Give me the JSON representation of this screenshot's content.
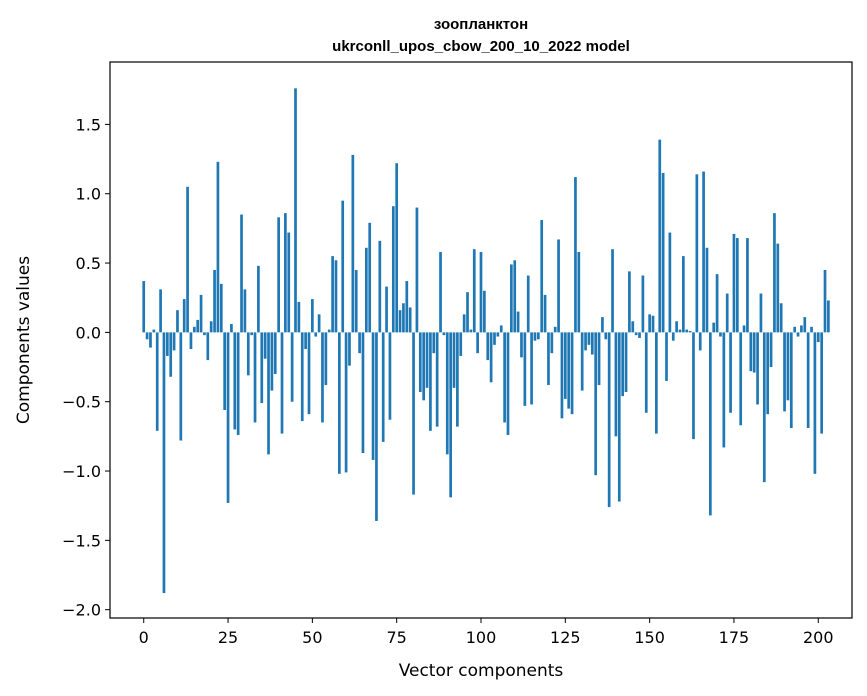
{
  "chart_data": {
    "type": "bar",
    "title_line1": "зоопланктон",
    "title_line2": "ukrconll_upos_cbow_200_10_2022 model",
    "xlabel": "Vector components",
    "ylabel": "Components values",
    "xlim": [
      -10,
      210
    ],
    "ylim": [
      -2.06,
      1.95
    ],
    "xticks": [
      0,
      25,
      50,
      75,
      100,
      125,
      150,
      175,
      200
    ],
    "yticks": [
      -2.0,
      -1.5,
      -1.0,
      -0.5,
      0.0,
      0.5,
      1.0,
      1.5
    ],
    "ytick_labels": [
      "−2.0",
      "−1.5",
      "−1.0",
      "−0.5",
      "0.0",
      "0.5",
      "1.0",
      "1.5"
    ],
    "bar_color": "#1f77b4",
    "grid": false,
    "values": [
      0.37,
      -0.05,
      -0.11,
      0.02,
      -0.71,
      0.31,
      -1.88,
      -0.17,
      -0.32,
      -0.13,
      0.16,
      -0.78,
      0.24,
      1.05,
      -0.12,
      0.04,
      0.09,
      0.27,
      -0.02,
      -0.2,
      0.08,
      0.45,
      1.23,
      0.35,
      -0.56,
      -1.23,
      0.06,
      -0.7,
      -0.74,
      0.85,
      0.31,
      -0.31,
      -0.02,
      -0.65,
      0.48,
      -0.51,
      -0.19,
      -0.88,
      -0.42,
      -0.3,
      0.83,
      -0.73,
      0.86,
      0.72,
      -0.5,
      1.76,
      0.22,
      -0.64,
      -0.12,
      -0.59,
      0.24,
      -0.03,
      0.13,
      -0.65,
      -0.38,
      0.02,
      0.55,
      0.52,
      -1.02,
      0.95,
      -1.01,
      -0.24,
      1.28,
      0.45,
      -0.15,
      -0.87,
      0.61,
      0.79,
      -0.92,
      -1.36,
      0.66,
      -0.79,
      0.33,
      -0.63,
      0.91,
      1.22,
      0.16,
      0.21,
      0.37,
      0.18,
      -1.17,
      0.9,
      -0.43,
      -0.49,
      -0.4,
      -0.71,
      -0.15,
      -0.68,
      0.58,
      -0.02,
      -0.88,
      -1.19,
      -0.4,
      -0.68,
      -0.17,
      0.13,
      0.29,
      0.02,
      0.6,
      -0.15,
      0.58,
      0.3,
      -0.2,
      -0.36,
      -0.09,
      -0.03,
      0.05,
      -0.65,
      -0.74,
      0.49,
      0.52,
      0.15,
      -0.18,
      -0.53,
      0.41,
      -0.52,
      -0.06,
      -0.05,
      0.81,
      0.27,
      -0.38,
      -0.15,
      0.04,
      0.67,
      -0.62,
      -0.48,
      -0.55,
      -0.59,
      1.12,
      0.58,
      -0.42,
      -0.13,
      -0.09,
      -0.16,
      -1.03,
      -0.38,
      0.11,
      -0.05,
      -1.26,
      0.6,
      -0.75,
      -1.22,
      -0.46,
      -0.43,
      0.44,
      0.08,
      -0.02,
      -0.04,
      0.41,
      -0.58,
      0.13,
      0.12,
      -0.73,
      1.39,
      1.15,
      -0.35,
      0.72,
      -0.06,
      0.08,
      0.02,
      0.55,
      0.02,
      0.01,
      -0.77,
      1.14,
      -0.13,
      1.16,
      0.61,
      -1.32,
      0.07,
      0.42,
      -0.03,
      -0.83,
      0.28,
      -0.58,
      0.71,
      0.68,
      -0.67,
      0.05,
      0.68,
      -0.28,
      -0.29,
      -0.52,
      0.28,
      -1.08,
      -0.59,
      -0.25,
      0.86,
      0.64,
      0.21,
      -0.57,
      -0.49,
      -0.69,
      0.04,
      -0.03,
      0.05,
      0.11,
      -0.69,
      0.04,
      -1.02,
      -0.07,
      -0.73,
      0.45,
      0.23
    ]
  }
}
